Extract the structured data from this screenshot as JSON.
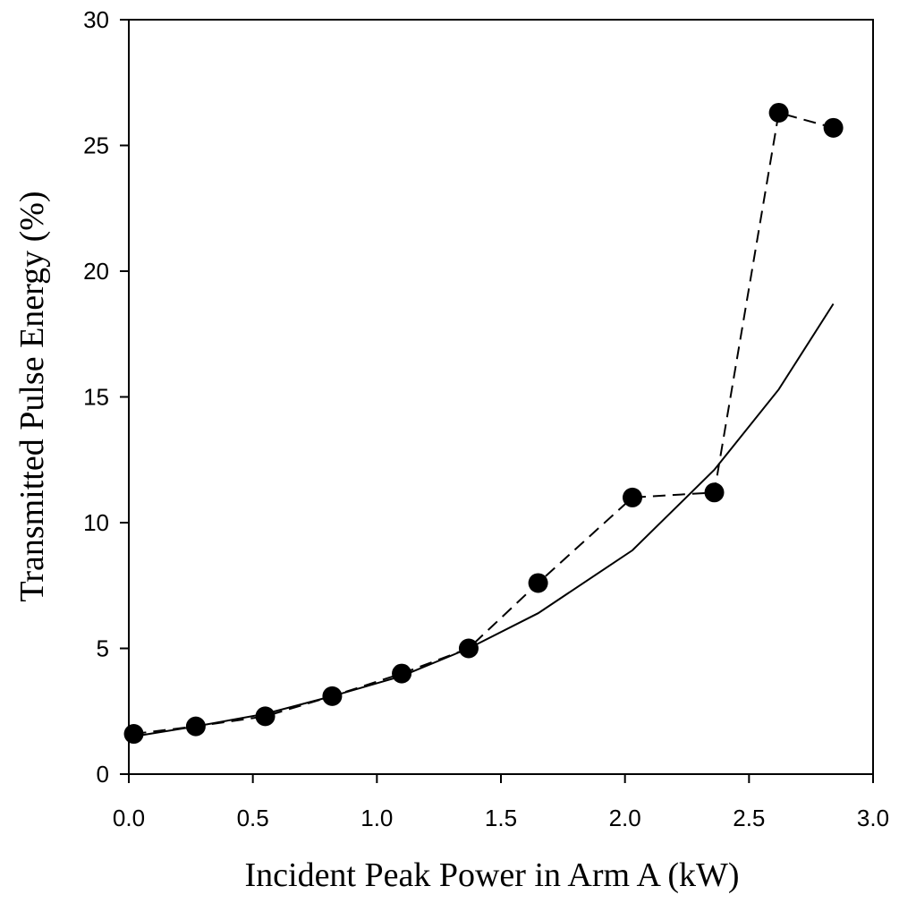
{
  "chart_data": {
    "type": "line",
    "title": "",
    "xlabel": "Incident Peak Power in Arm A (kW)",
    "ylabel": "Transmitted Pulse Energy (%)",
    "xlim": [
      0.0,
      3.0
    ],
    "ylim": [
      0,
      30
    ],
    "x_ticks": [
      0.0,
      0.5,
      1.0,
      1.5,
      2.0,
      2.5,
      3.0
    ],
    "x_tick_labels": [
      "0.0",
      "0.5",
      "1.0",
      "1.5",
      "2.0",
      "2.5",
      "3.0"
    ],
    "y_ticks": [
      0,
      5,
      10,
      15,
      20,
      25,
      30
    ],
    "y_tick_labels": [
      "0",
      "5",
      "10",
      "15",
      "20",
      "25",
      "30"
    ],
    "grid": false,
    "series": [
      {
        "style": "dashed-with-markers",
        "marker": "filled-circle",
        "color": "#000000",
        "x": [
          0.02,
          0.27,
          0.55,
          0.82,
          1.1,
          1.37,
          1.65,
          2.03,
          2.36,
          2.62,
          2.84
        ],
        "y": [
          1.6,
          1.9,
          2.3,
          3.1,
          4.0,
          5.0,
          7.6,
          11.0,
          11.2,
          26.3,
          25.7
        ]
      },
      {
        "style": "solid",
        "color": "#000000",
        "x": [
          0.02,
          0.27,
          0.55,
          0.82,
          1.1,
          1.37,
          1.65,
          2.03,
          2.36,
          2.62,
          2.84
        ],
        "y": [
          1.5,
          1.9,
          2.4,
          3.1,
          3.9,
          5.0,
          6.4,
          8.9,
          12.1,
          15.3,
          18.7
        ]
      }
    ]
  }
}
